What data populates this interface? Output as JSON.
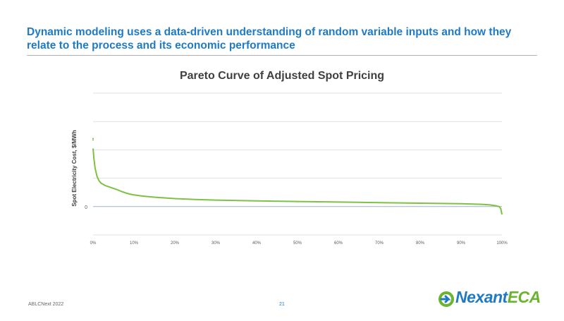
{
  "slide": {
    "headline": "Dynamic modeling uses a data-driven understanding of random variable inputs and how they relate to the process and its economic performance",
    "footer_left": "ABLCNext 2022",
    "page_number": "21",
    "logo": {
      "part1": "Nexant",
      "part2": "ECA",
      "icon": "arrow-circle-icon"
    }
  },
  "chart_data": {
    "type": "line",
    "title": "Pareto Curve of Adjusted Spot Pricing",
    "xlabel": "",
    "ylabel": "Spot Electricity Cost, $/MWh",
    "x_ticks": [
      "0%",
      "10%",
      "20%",
      "30%",
      "40%",
      "50%",
      "60%",
      "70%",
      "80%",
      "90%",
      "100%"
    ],
    "y_ticks": [
      "0"
    ],
    "xlim": [
      0,
      100
    ],
    "ylim": [
      -1,
      4
    ],
    "grid": true,
    "series_color": "#7dc242",
    "series": [
      {
        "x": [
          0,
          0.2,
          0.5,
          1,
          1.5,
          2,
          3,
          4,
          5,
          6,
          7,
          8,
          9,
          10,
          12,
          15,
          20,
          25,
          30,
          40,
          50,
          60,
          70,
          80,
          90,
          95,
          97,
          98.5,
          99.3,
          99.7,
          100
        ],
        "y": [
          2.05,
          1.7,
          1.35,
          1.05,
          0.9,
          0.82,
          0.74,
          0.69,
          0.64,
          0.59,
          0.53,
          0.48,
          0.44,
          0.41,
          0.37,
          0.33,
          0.28,
          0.25,
          0.23,
          0.2,
          0.18,
          0.16,
          0.14,
          0.12,
          0.1,
          0.08,
          0.06,
          0.03,
          0.0,
          -0.07,
          -0.28
        ]
      }
    ],
    "outliers": [
      {
        "x": 0,
        "y": 2.35
      },
      {
        "x": 0,
        "y": 2.4
      }
    ]
  }
}
